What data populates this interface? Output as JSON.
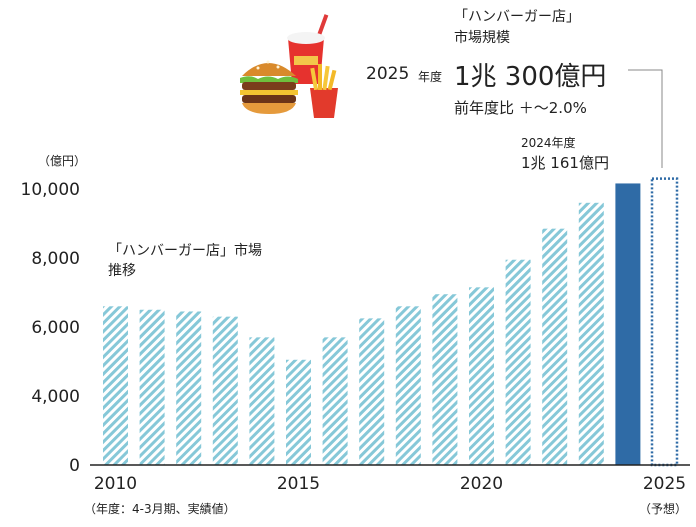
{
  "headline": {
    "line1": "「ハンバーガー店」",
    "line2": "市場規模",
    "forecast_year": "2025",
    "forecast_year_suffix": "年度",
    "forecast_value": "1兆 300億円",
    "growth": "前年度比 ＋～2.0%",
    "prev_label": "2024年度",
    "prev_value": "1兆 161億円"
  },
  "unit_label": "（億円）",
  "subtitle_line1": "「ハンバーガー店」市場",
  "subtitle_line2": "推移",
  "footnote": "（年度：4-3月期、実績値）",
  "forecast_note": "（予想）",
  "illustration": "hamburger-fries-drink-icon",
  "colors": {
    "actual_bar_hatch": "#86c8d8",
    "highlight_bar": "#2f6ba6",
    "forecast_outline": "#2f6ba6",
    "connector_line": "#888888"
  },
  "chart_data": {
    "type": "bar",
    "x": [
      2010,
      2011,
      2012,
      2013,
      2014,
      2015,
      2016,
      2017,
      2018,
      2019,
      2020,
      2021,
      2022,
      2023,
      2024,
      2025
    ],
    "values": [
      6600,
      6500,
      6450,
      6300,
      5700,
      5050,
      5700,
      6250,
      6600,
      6950,
      7150,
      7950,
      8850,
      9600,
      10161,
      10300
    ],
    "bar_styles": [
      "hatched",
      "hatched",
      "hatched",
      "hatched",
      "hatched",
      "hatched",
      "hatched",
      "hatched",
      "hatched",
      "hatched",
      "hatched",
      "hatched",
      "hatched",
      "hatched",
      "solid",
      "dotted-outline"
    ],
    "x_tick_labels": [
      "2010",
      "2015",
      "2020",
      "2025"
    ],
    "y_tick_labels": [
      "0",
      "4,000",
      "6,000",
      "8,000",
      "10,000"
    ],
    "ylim": [
      0,
      10000
    ],
    "y_scale": "broken axis (0 to 4,000 compressed)",
    "grid": false,
    "legend": "none"
  }
}
